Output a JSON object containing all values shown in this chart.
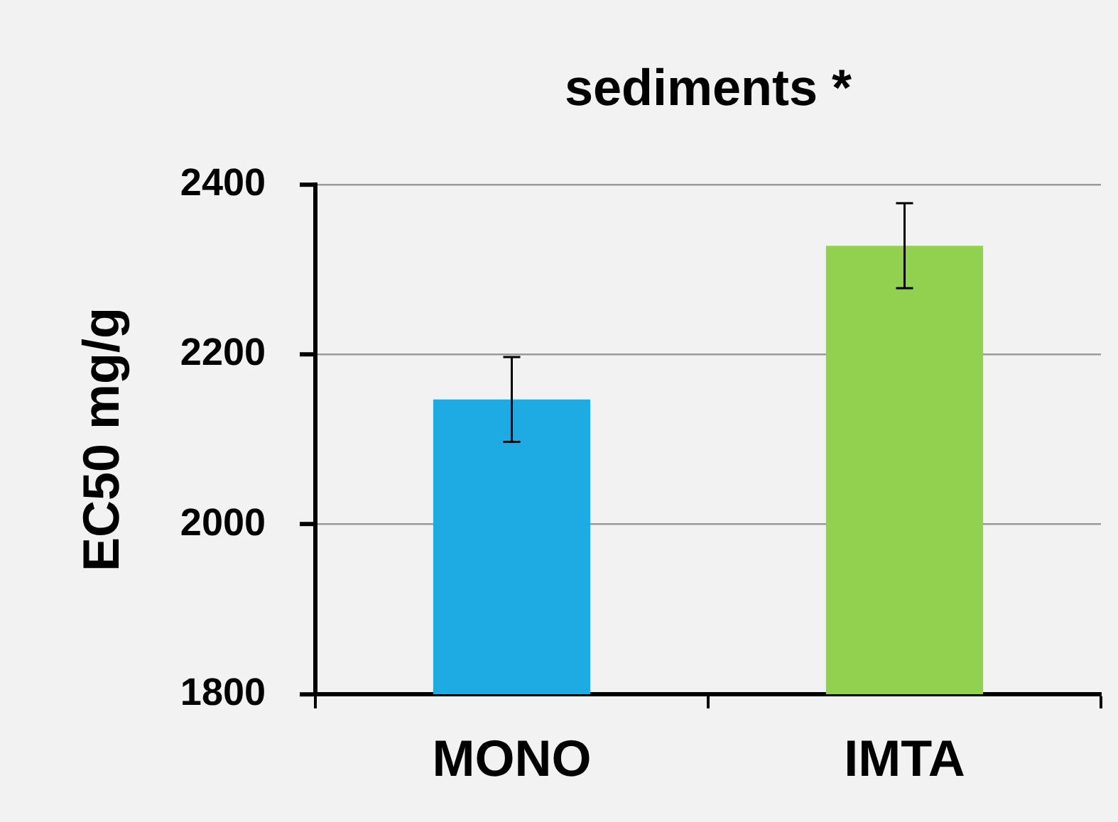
{
  "chart_data": {
    "type": "bar",
    "title": "sediments *",
    "ylabel": "EC50 mg/g",
    "categories": [
      "MONO",
      "IMTA"
    ],
    "values": [
      2147,
      2328
    ],
    "errors": [
      50,
      50
    ],
    "colors": [
      "#1eabe3",
      "#92d050"
    ],
    "ylim": [
      1800,
      2400
    ],
    "yticks": [
      1800,
      2000,
      2200,
      2400
    ],
    "grid": "y"
  }
}
